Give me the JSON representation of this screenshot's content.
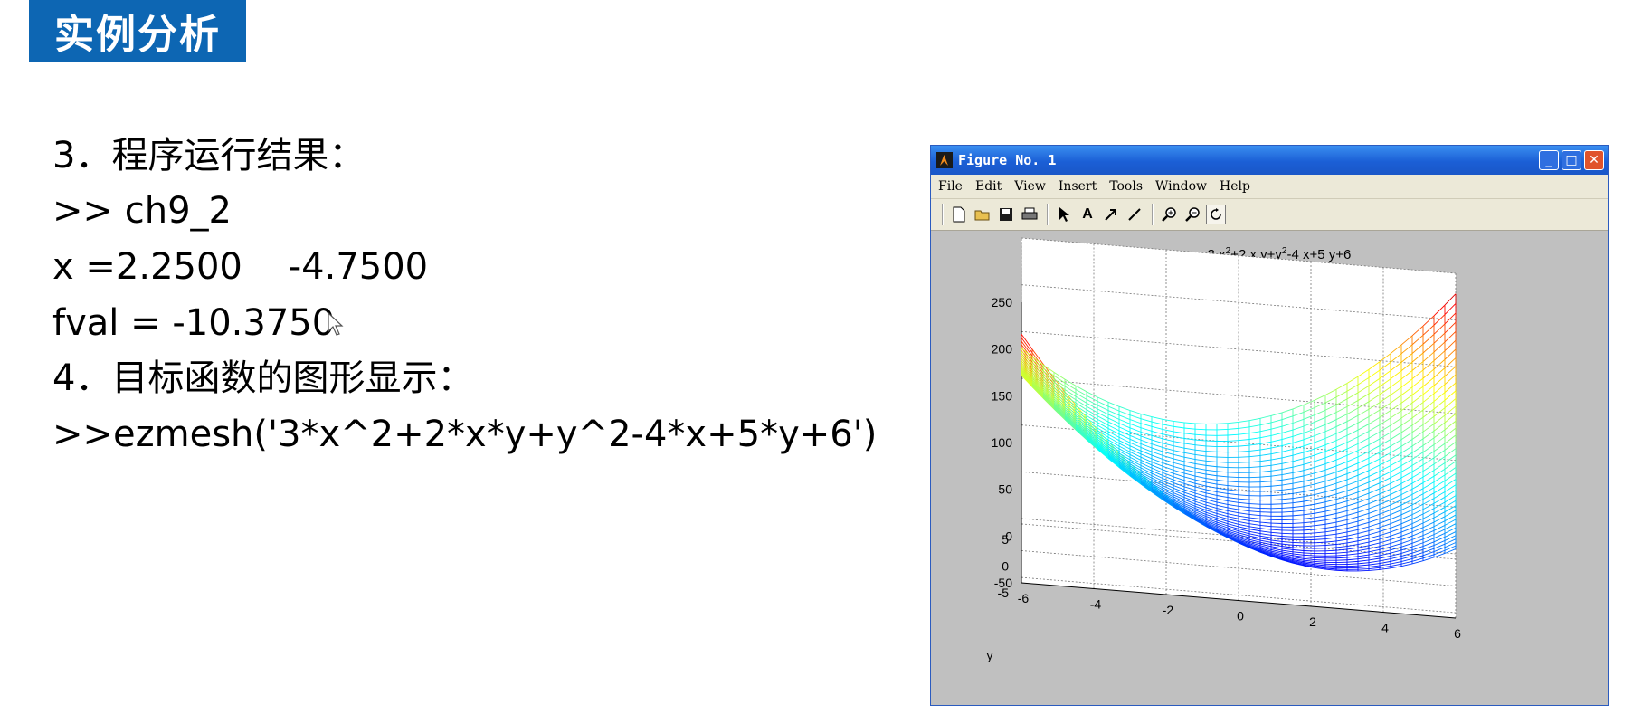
{
  "slide": {
    "title": "实例分析",
    "lines": [
      "3．程序运行结果：",
      ">> ch9_2",
      "x =2.2500    -4.7500",
      "fval = -10.3750",
      "4．目标函数的图形显示：",
      ">>ezmesh('3*x^2+2*x*y+y^2-4*x+5*y+6')"
    ]
  },
  "figure_window": {
    "title": "Figure No. 1",
    "menu": [
      "File",
      "Edit",
      "View",
      "Insert",
      "Tools",
      "Window",
      "Help"
    ],
    "toolbar_icons": [
      "new-file-icon",
      "open-folder-icon",
      "save-icon",
      "print-icon",
      "select-arrow-icon",
      "text-tool-icon",
      "arrow-tool-icon",
      "line-tool-icon",
      "zoom-in-icon",
      "zoom-out-icon",
      "rotate-3d-icon"
    ],
    "accent_color": "#1b5fd6"
  },
  "chart_data": {
    "type": "mesh",
    "function": "3*x^2+2*x*y+y^2-4*x+5*y+6",
    "title_parts": {
      "a": "3 x",
      "a_sup": "2",
      "b": "+2 x y+y",
      "b_sup": "2",
      "c": "-4 x+5 y+6"
    },
    "z_ticks": [
      "250",
      "200",
      "150",
      "100",
      "50",
      "0",
      "-50"
    ],
    "x_ticks": [
      "-6",
      "-4",
      "-2",
      "0",
      "2",
      "4",
      "6"
    ],
    "y_ticks": [
      "5",
      "0",
      "-5"
    ],
    "xlabel": "",
    "ylabel": "y",
    "xlim": [
      -6,
      6
    ],
    "ylim": [
      -6,
      6
    ],
    "zlim": [
      -50,
      250
    ],
    "grid": true,
    "colormap": "jet"
  }
}
